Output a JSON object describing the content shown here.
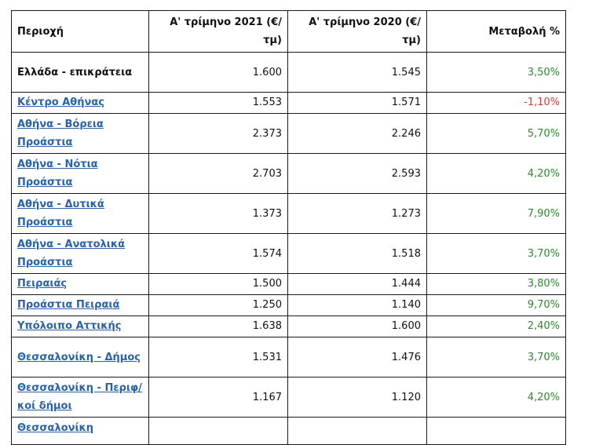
{
  "headers": {
    "region": "Περιοχή",
    "q1_2021": "Α' τρίμηνο 2021 (€/τμ)",
    "q1_2020": "Α' τρίμηνο 2020 (€/τμ)",
    "change": "Μεταβολή %"
  },
  "rows": [
    {
      "region": "Ελλάδα - επικράτεια",
      "y2021": "1.600",
      "y2020": "1.545",
      "change": "3,50%"
    },
    {
      "region": "Κέντρο Αθήνας",
      "y2021": "1.553",
      "y2020": "1.571",
      "change": "-1,10%"
    },
    {
      "region": "Αθήνα - Βόρεια Προάστια",
      "y2021": "2.373",
      "y2020": "2.246",
      "change": "5,70%"
    },
    {
      "region": "Αθήνα - Νότια Προάστια",
      "y2021": "2.703",
      "y2020": "2.593",
      "change": "4,20%"
    },
    {
      "region": "Αθήνα - Δυτικά Προάστια",
      "y2021": "1.373",
      "y2020": "1.273",
      "change": "7,90%"
    },
    {
      "region": "Αθήνα - Ανατολικά Προάστια",
      "y2021": "1.574",
      "y2020": "1.518",
      "change": "3,70%"
    },
    {
      "region": "Πειραιάς",
      "y2021": "1.500",
      "y2020": "1.444",
      "change": "3,80%"
    },
    {
      "region": "Προάστια Πειραιά",
      "y2021": "1.250",
      "y2020": "1.140",
      "change": "9,70%"
    },
    {
      "region": "Υπόλοιπο Αττικής",
      "y2021": "1.638",
      "y2020": "1.600",
      "change": "2,40%"
    },
    {
      "region": "Θεσσαλονίκη - Δήμος",
      "y2021": "1.531",
      "y2020": "1.476",
      "change": "3,70%"
    },
    {
      "region": "Θεσσαλονίκη - Περιφ/κοί δήμοι",
      "y2021": "1.167",
      "y2020": "1.120",
      "change": "4,20%"
    },
    {
      "region": "Θεσσαλονίκη",
      "y2021": "",
      "y2020": "",
      "change": ""
    }
  ],
  "colors": {
    "link": "#2962a8",
    "positive": "#2e8b2e",
    "negative": "#d43f3f"
  }
}
